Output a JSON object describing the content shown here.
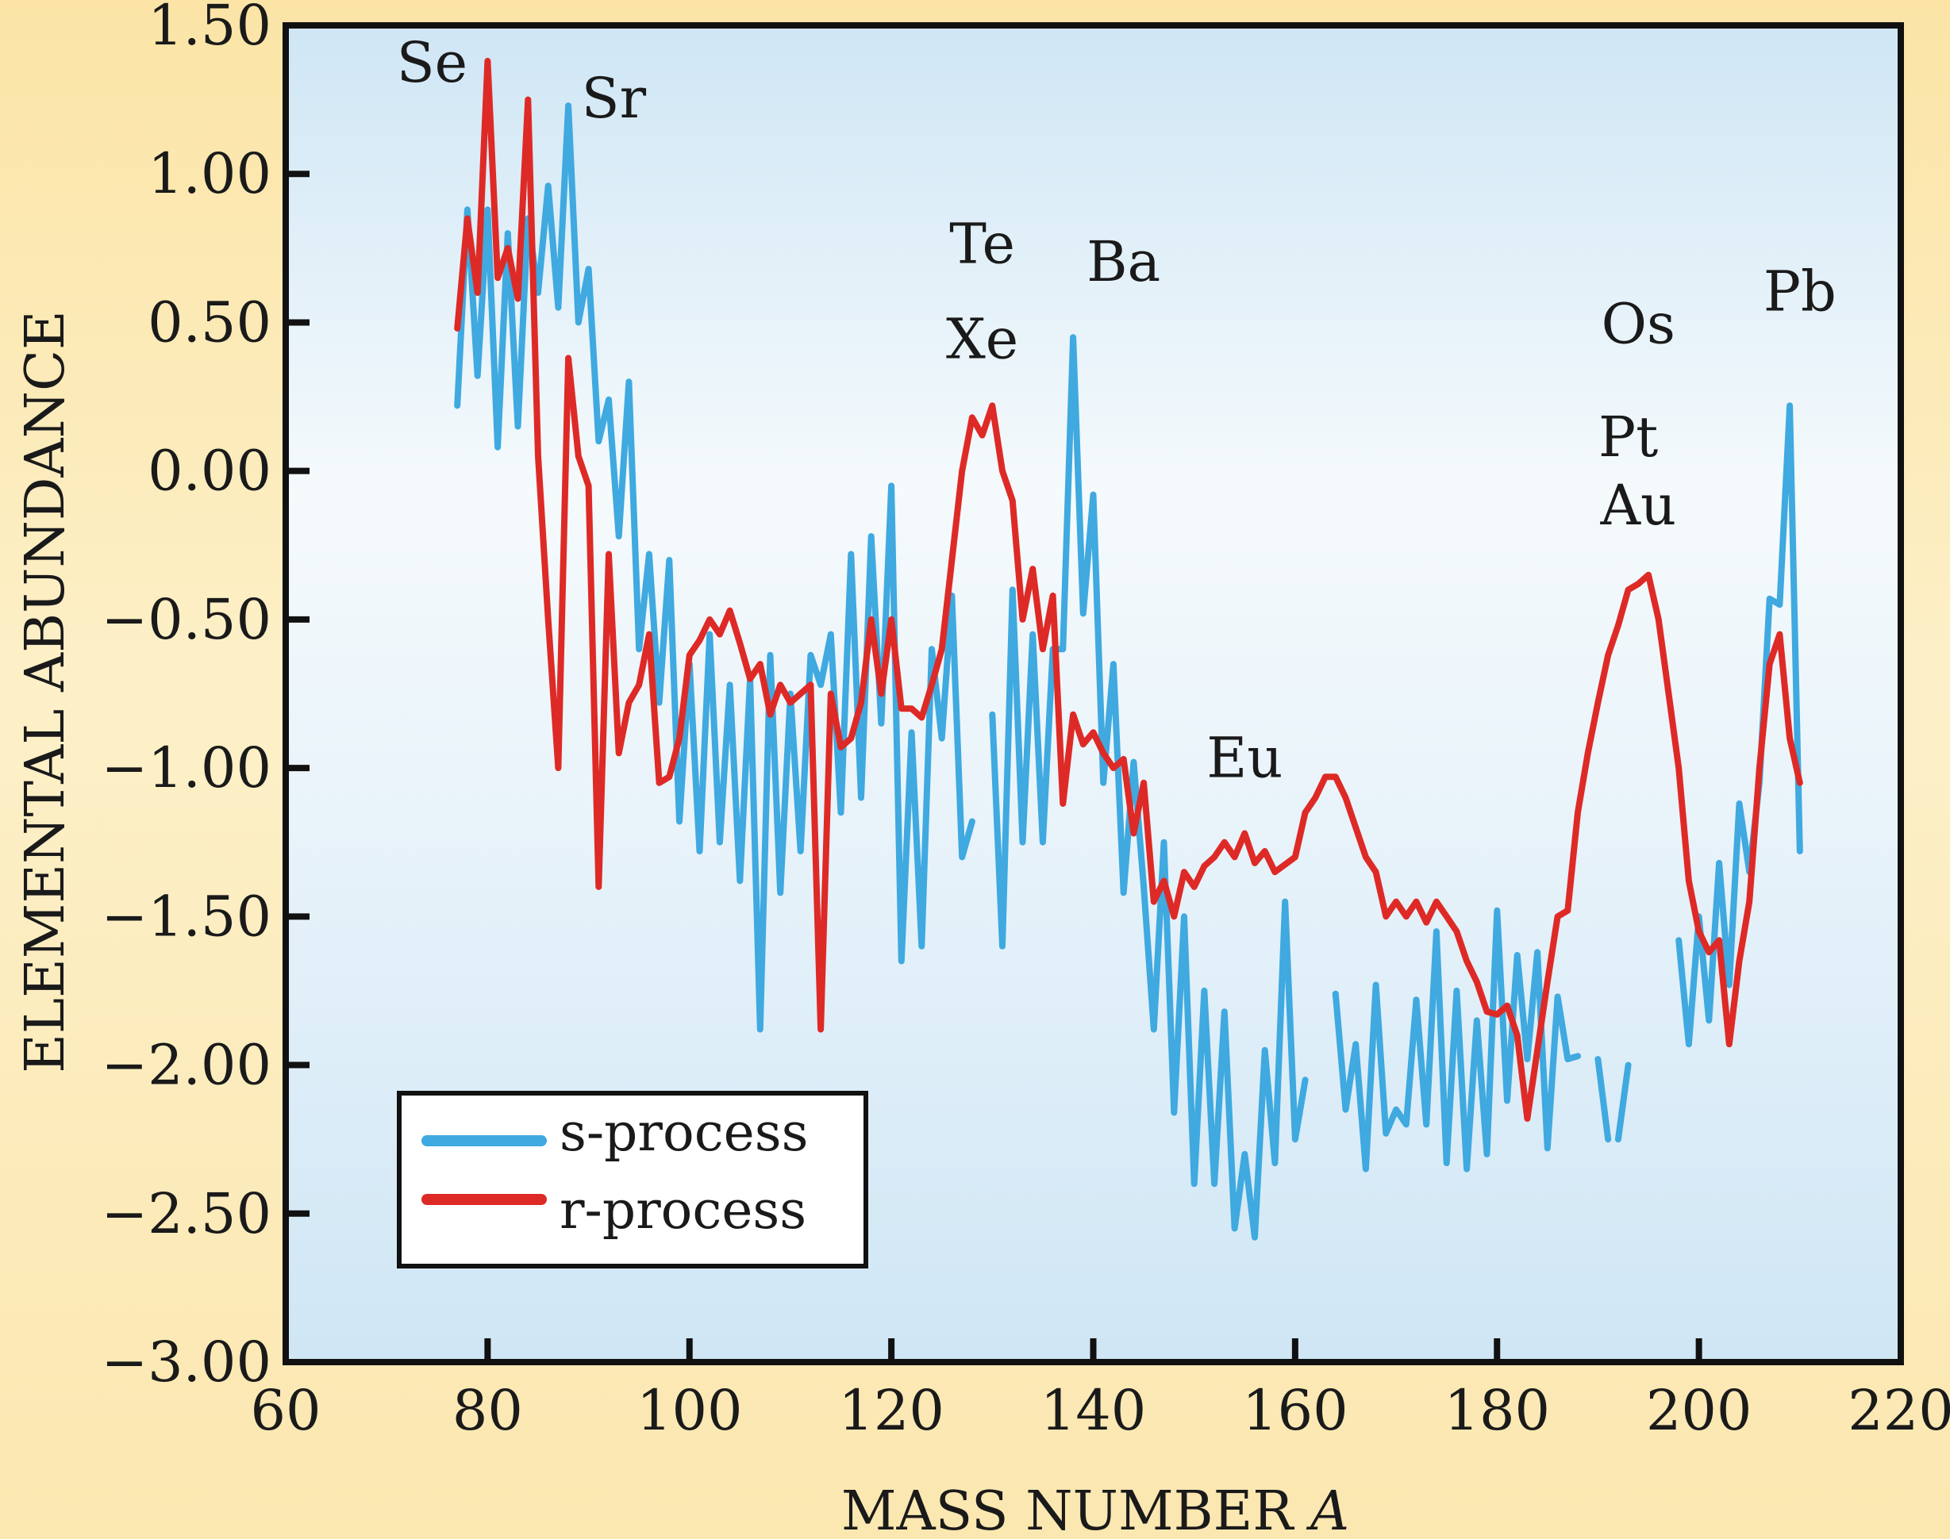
{
  "chart_data": {
    "type": "line",
    "title": "",
    "xlabel": "MASS NUMBER",
    "xlabel_var": "A",
    "ylabel": "ELEMENTAL ABUNDANCE",
    "xlim": [
      60,
      220
    ],
    "ylim": [
      -3.0,
      1.5
    ],
    "x_ticks": [
      60,
      80,
      100,
      120,
      140,
      160,
      180,
      200,
      220
    ],
    "x_tick_labels": [
      "60",
      "80",
      "100",
      "120",
      "140",
      "160",
      "180",
      "200",
      "220"
    ],
    "y_ticks": [
      1.5,
      1.0,
      0.5,
      0.0,
      -0.5,
      -1.0,
      -1.5,
      -2.0,
      -2.5,
      -3.0
    ],
    "y_tick_labels": [
      "1.50",
      "1.00",
      "0.50",
      "0.00",
      "−0.50",
      "−1.00",
      "−1.50",
      "−2.00",
      "−2.50",
      "−3.00"
    ],
    "grid": false,
    "legend_position": "bottom-left",
    "series": [
      {
        "name": "s-process",
        "color": "#3fa9e0",
        "segments": [
          [
            [
              77,
              0.22
            ],
            [
              78,
              0.88
            ],
            [
              79,
              0.32
            ],
            [
              80,
              0.88
            ],
            [
              81,
              0.08
            ],
            [
              82,
              0.8
            ],
            [
              83,
              0.15
            ],
            [
              84,
              0.85
            ],
            [
              85,
              0.6
            ],
            [
              86,
              0.96
            ],
            [
              87,
              0.55
            ],
            [
              88,
              1.23
            ],
            [
              89,
              0.5
            ],
            [
              90,
              0.68
            ],
            [
              91,
              0.1
            ],
            [
              92,
              0.24
            ],
            [
              93,
              -0.22
            ],
            [
              94,
              0.3
            ],
            [
              95,
              -0.6
            ],
            [
              96,
              -0.28
            ],
            [
              97,
              -0.78
            ],
            [
              98,
              -0.3
            ],
            [
              99,
              -1.18
            ],
            [
              100,
              -0.65
            ],
            [
              101,
              -1.28
            ],
            [
              102,
              -0.55
            ],
            [
              103,
              -1.25
            ],
            [
              104,
              -0.72
            ],
            [
              105,
              -1.38
            ],
            [
              106,
              -0.7
            ],
            [
              107,
              -1.88
            ],
            [
              108,
              -0.62
            ],
            [
              109,
              -1.42
            ],
            [
              110,
              -0.75
            ],
            [
              111,
              -1.28
            ],
            [
              112,
              -0.62
            ],
            [
              113,
              -0.72
            ],
            [
              114,
              -0.55
            ],
            [
              115,
              -1.15
            ],
            [
              116,
              -0.28
            ],
            [
              117,
              -1.1
            ],
            [
              118,
              -0.22
            ],
            [
              119,
              -0.85
            ],
            [
              120,
              -0.05
            ],
            [
              121,
              -1.65
            ],
            [
              122,
              -0.88
            ],
            [
              123,
              -1.6
            ],
            [
              124,
              -0.6
            ],
            [
              125,
              -0.9
            ],
            [
              126,
              -0.42
            ],
            [
              127,
              -1.3
            ],
            [
              128,
              -1.18
            ]
          ],
          [
            [
              130,
              -0.82
            ],
            [
              131,
              -1.6
            ],
            [
              132,
              -0.4
            ],
            [
              133,
              -1.25
            ],
            [
              134,
              -0.55
            ],
            [
              135,
              -1.25
            ],
            [
              136,
              -0.6
            ],
            [
              137,
              -0.6
            ],
            [
              138,
              0.45
            ],
            [
              139,
              -0.48
            ],
            [
              140,
              -0.08
            ],
            [
              141,
              -1.05
            ],
            [
              142,
              -0.65
            ],
            [
              143,
              -1.42
            ],
            [
              144,
              -0.98
            ],
            [
              145,
              -1.4
            ],
            [
              146,
              -1.88
            ],
            [
              147,
              -1.25
            ],
            [
              148,
              -2.16
            ],
            [
              149,
              -1.5
            ],
            [
              150,
              -2.4
            ],
            [
              151,
              -1.75
            ],
            [
              152,
              -2.4
            ],
            [
              153,
              -1.82
            ],
            [
              154,
              -2.55
            ],
            [
              155,
              -2.3
            ],
            [
              156,
              -2.58
            ],
            [
              157,
              -1.95
            ],
            [
              158,
              -2.33
            ],
            [
              159,
              -1.45
            ],
            [
              160,
              -2.25
            ],
            [
              161,
              -2.05
            ]
          ],
          [
            [
              164,
              -1.76
            ],
            [
              165,
              -2.15
            ],
            [
              166,
              -1.93
            ],
            [
              167,
              -2.35
            ],
            [
              168,
              -1.73
            ],
            [
              169,
              -2.23
            ],
            [
              170,
              -2.15
            ],
            [
              171,
              -2.2
            ],
            [
              172,
              -1.78
            ],
            [
              173,
              -2.2
            ],
            [
              174,
              -1.55
            ],
            [
              175,
              -2.33
            ],
            [
              176,
              -1.75
            ],
            [
              177,
              -2.35
            ],
            [
              178,
              -1.85
            ],
            [
              179,
              -2.3
            ],
            [
              180,
              -1.48
            ],
            [
              181,
              -2.12
            ],
            [
              182,
              -1.63
            ],
            [
              183,
              -1.98
            ],
            [
              184,
              -1.62
            ],
            [
              185,
              -2.28
            ],
            [
              186,
              -1.77
            ],
            [
              187,
              -1.98
            ],
            [
              188,
              -1.97
            ]
          ],
          [
            [
              190,
              -1.98
            ],
            [
              191,
              -2.25
            ]
          ],
          [
            [
              192,
              -2.25
            ],
            [
              193,
              -2.0
            ]
          ],
          [
            [
              198,
              -1.58
            ],
            [
              199,
              -1.93
            ],
            [
              200,
              -1.5
            ],
            [
              201,
              -1.85
            ],
            [
              202,
              -1.32
            ],
            [
              203,
              -1.73
            ],
            [
              204,
              -1.12
            ],
            [
              205,
              -1.35
            ],
            [
              206,
              -1.05
            ],
            [
              207,
              -0.43
            ],
            [
              208,
              -0.45
            ],
            [
              209,
              0.22
            ],
            [
              210,
              -1.28
            ]
          ]
        ]
      },
      {
        "name": "r-process",
        "color": "#de2a26",
        "segments": [
          [
            [
              77,
              0.48
            ],
            [
              78,
              0.85
            ],
            [
              79,
              0.6
            ],
            [
              80,
              1.38
            ],
            [
              81,
              0.65
            ],
            [
              82,
              0.75
            ],
            [
              83,
              0.58
            ],
            [
              84,
              1.25
            ],
            [
              85,
              0.05
            ],
            [
              86,
              -0.5
            ],
            [
              87,
              -1.0
            ],
            [
              88,
              0.38
            ],
            [
              89,
              0.05
            ],
            [
              90,
              -0.05
            ],
            [
              91,
              -1.4
            ],
            [
              92,
              -0.28
            ],
            [
              93,
              -0.95
            ],
            [
              94,
              -0.78
            ],
            [
              95,
              -0.72
            ],
            [
              96,
              -0.55
            ],
            [
              97,
              -1.05
            ],
            [
              98,
              -1.03
            ],
            [
              99,
              -0.9
            ],
            [
              100,
              -0.62
            ],
            [
              101,
              -0.57
            ],
            [
              102,
              -0.5
            ],
            [
              103,
              -0.55
            ],
            [
              104,
              -0.47
            ],
            [
              105,
              -0.58
            ],
            [
              106,
              -0.7
            ],
            [
              107,
              -0.65
            ],
            [
              108,
              -0.82
            ],
            [
              109,
              -0.72
            ],
            [
              110,
              -0.78
            ],
            [
              111,
              -0.75
            ],
            [
              112,
              -0.72
            ],
            [
              113,
              -1.88
            ],
            [
              114,
              -0.75
            ],
            [
              115,
              -0.93
            ],
            [
              116,
              -0.9
            ],
            [
              117,
              -0.78
            ],
            [
              118,
              -0.5
            ],
            [
              119,
              -0.75
            ],
            [
              120,
              -0.5
            ],
            [
              121,
              -0.8
            ],
            [
              122,
              -0.8
            ],
            [
              123,
              -0.83
            ],
            [
              124,
              -0.72
            ],
            [
              125,
              -0.6
            ],
            [
              126,
              -0.3
            ],
            [
              127,
              0.0
            ],
            [
              128,
              0.18
            ],
            [
              129,
              0.12
            ],
            [
              130,
              0.22
            ],
            [
              131,
              0.0
            ],
            [
              132,
              -0.1
            ],
            [
              133,
              -0.5
            ],
            [
              134,
              -0.33
            ],
            [
              135,
              -0.6
            ],
            [
              136,
              -0.42
            ],
            [
              137,
              -1.12
            ],
            [
              138,
              -0.82
            ],
            [
              139,
              -0.92
            ],
            [
              140,
              -0.88
            ],
            [
              141,
              -0.95
            ],
            [
              142,
              -1.0
            ],
            [
              143,
              -0.97
            ],
            [
              144,
              -1.22
            ],
            [
              145,
              -1.05
            ],
            [
              146,
              -1.45
            ],
            [
              147,
              -1.38
            ],
            [
              148,
              -1.5
            ],
            [
              149,
              -1.35
            ],
            [
              150,
              -1.4
            ],
            [
              151,
              -1.33
            ],
            [
              152,
              -1.3
            ],
            [
              153,
              -1.25
            ],
            [
              154,
              -1.3
            ],
            [
              155,
              -1.22
            ],
            [
              156,
              -1.32
            ],
            [
              157,
              -1.28
            ],
            [
              158,
              -1.35
            ],
            [
              160,
              -1.3
            ],
            [
              161,
              -1.15
            ],
            [
              162,
              -1.1
            ],
            [
              163,
              -1.03
            ],
            [
              164,
              -1.03
            ],
            [
              165,
              -1.1
            ],
            [
              166,
              -1.2
            ],
            [
              167,
              -1.3
            ],
            [
              168,
              -1.35
            ],
            [
              169,
              -1.5
            ],
            [
              170,
              -1.45
            ],
            [
              171,
              -1.5
            ],
            [
              172,
              -1.45
            ],
            [
              173,
              -1.52
            ],
            [
              174,
              -1.45
            ],
            [
              175,
              -1.5
            ],
            [
              176,
              -1.55
            ],
            [
              177,
              -1.65
            ],
            [
              178,
              -1.72
            ],
            [
              179,
              -1.82
            ],
            [
              180,
              -1.83
            ],
            [
              181,
              -1.8
            ],
            [
              182,
              -1.9
            ],
            [
              183,
              -2.18
            ],
            [
              184,
              -1.95
            ],
            [
              185,
              -1.72
            ],
            [
              186,
              -1.5
            ],
            [
              187,
              -1.48
            ],
            [
              188,
              -1.15
            ],
            [
              189,
              -0.95
            ],
            [
              190,
              -0.78
            ],
            [
              191,
              -0.62
            ],
            [
              192,
              -0.52
            ],
            [
              193,
              -0.4
            ],
            [
              194,
              -0.38
            ],
            [
              195,
              -0.35
            ],
            [
              196,
              -0.5
            ],
            [
              197,
              -0.75
            ],
            [
              198,
              -1.0
            ],
            [
              199,
              -1.38
            ],
            [
              200,
              -1.55
            ],
            [
              201,
              -1.62
            ],
            [
              202,
              -1.58
            ],
            [
              203,
              -1.93
            ],
            [
              204,
              -1.65
            ],
            [
              205,
              -1.45
            ],
            [
              206,
              -1.0
            ],
            [
              207,
              -0.65
            ],
            [
              208,
              -0.55
            ],
            [
              209,
              -0.9
            ],
            [
              210,
              -1.05
            ]
          ]
        ]
      }
    ],
    "annotations": [
      {
        "text": "Se",
        "x": 74.5,
        "y": 1.31
      },
      {
        "text": "Sr",
        "x": 92.5,
        "y": 1.19
      },
      {
        "text": "Te",
        "x": 129,
        "y": 0.7
      },
      {
        "text": "Xe",
        "x": 129,
        "y": 0.38
      },
      {
        "text": "Ba",
        "x": 143,
        "y": 0.64
      },
      {
        "text": "Eu",
        "x": 155,
        "y": -1.03
      },
      {
        "text": "Os",
        "x": 194,
        "y": 0.43
      },
      {
        "text": "Pt",
        "x": 193,
        "y": 0.05
      },
      {
        "text": "Au",
        "x": 194,
        "y": -0.18
      },
      {
        "text": "Pb",
        "x": 210,
        "y": 0.54
      }
    ]
  }
}
